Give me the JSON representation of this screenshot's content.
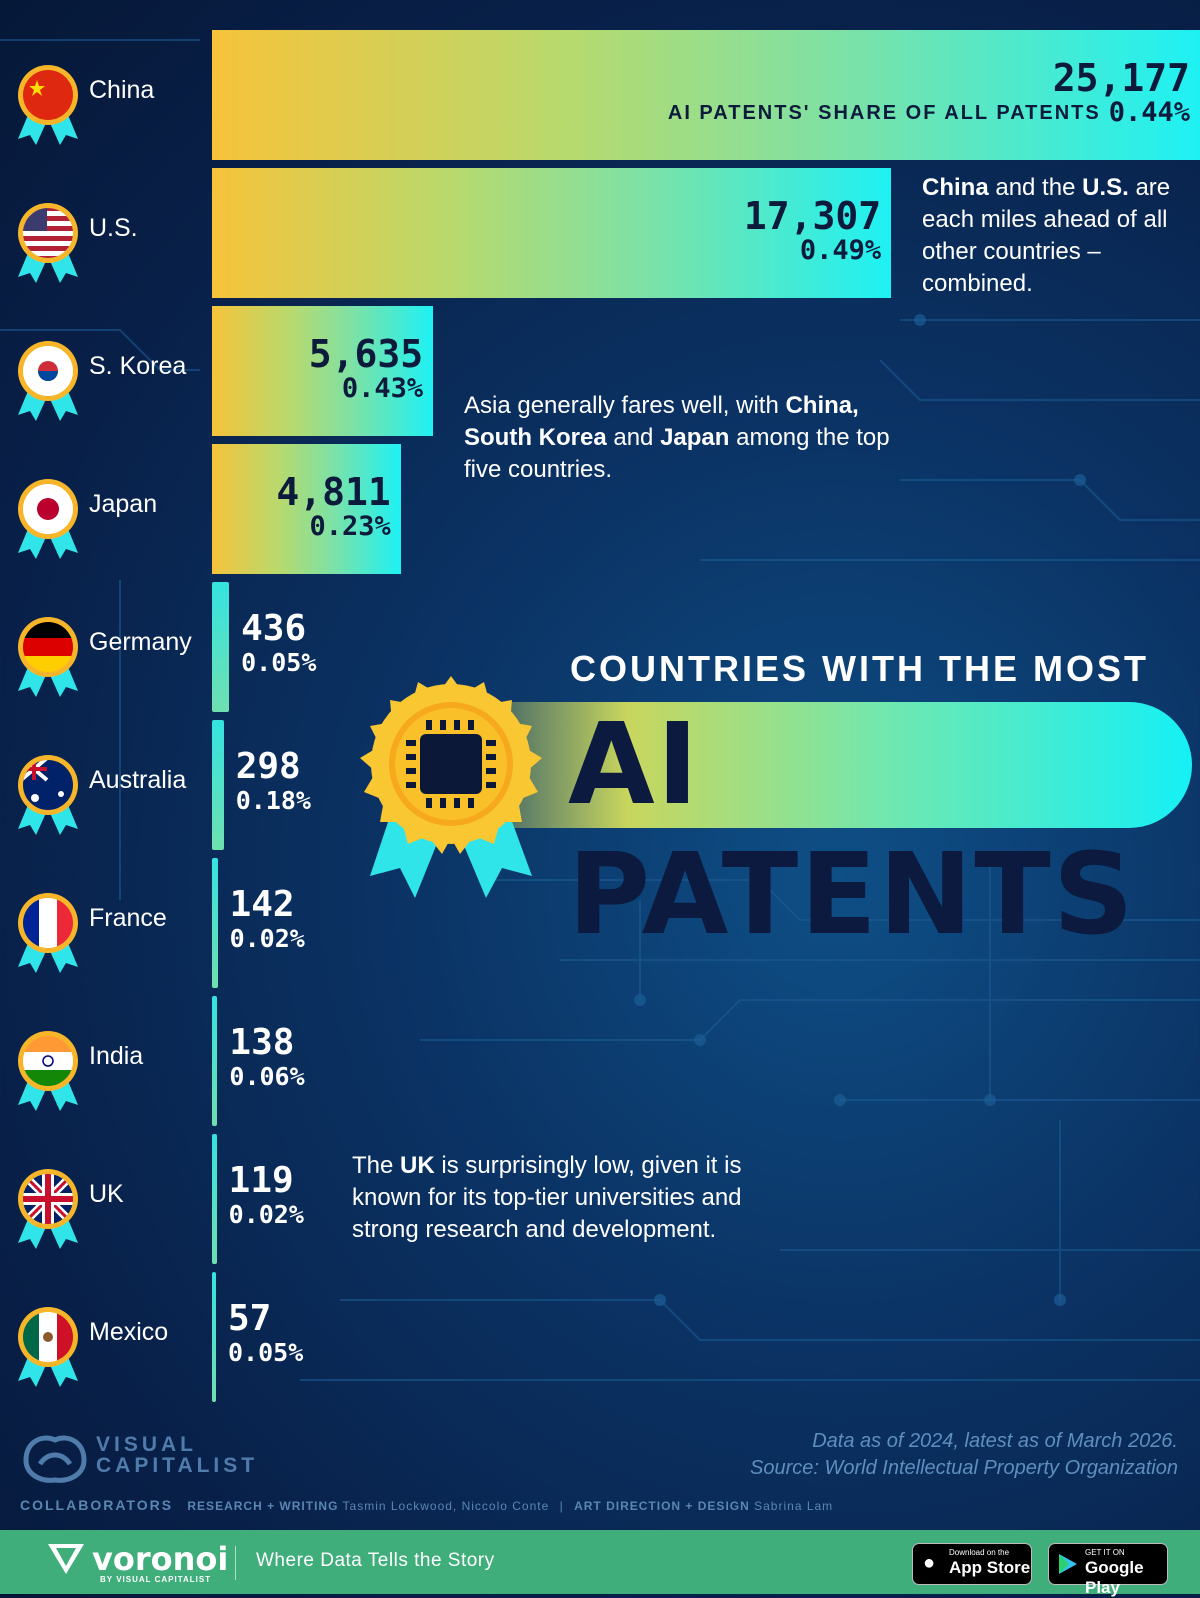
{
  "chart_data": {
    "type": "bar",
    "title": "COUNTRIES WITH THE MOST AI PATENTS",
    "title_top": "COUNTRIES WITH THE MOST",
    "title_main": "AI PATENTS",
    "orientation": "horizontal",
    "share_label": "AI PATENTS' SHARE OF ALL PATENTS",
    "categories": [
      "China",
      "U.S.",
      "S. Korea",
      "Japan",
      "Germany",
      "Australia",
      "France",
      "India",
      "UK",
      "Mexico"
    ],
    "values": [
      25177,
      17307,
      5635,
      4811,
      436,
      298,
      142,
      138,
      119,
      57
    ],
    "value_labels": [
      "25,177",
      "17,307",
      "5,635",
      "4,811",
      "436",
      "298",
      "142",
      "138",
      "119",
      "57"
    ],
    "share_labels": [
      "0.44%",
      "0.49%",
      "0.43%",
      "0.23%",
      "0.05%",
      "0.18%",
      "0.02%",
      "0.06%",
      "0.02%",
      "0.05%"
    ],
    "xlim": [
      0,
      25177
    ]
  },
  "notes": {
    "us_note": {
      "b1": "China",
      "t1": " and the ",
      "b2": "U.S.",
      "t2": " are each miles ahead of all other countries – combined."
    },
    "asia_note": {
      "t1": "Asia generally fares well, with ",
      "b1": "China,",
      "t2": " ",
      "b2": "South Korea",
      "t3": " and ",
      "b3": "Japan",
      "t4": " among the top five countries."
    },
    "uk_note": {
      "t1": "The ",
      "b1": "UK",
      "t2": " is surprisingly low, given it is known for its top-tier universities and strong research and development."
    }
  },
  "footer": {
    "data_note": "Data as of 2024, latest as of March 2026.",
    "source": "Source: World Intellectual Property Organization",
    "brand_line1": "VISUAL",
    "brand_line2": "CAPITALIST",
    "collaborators_label": "COLLABORATORS",
    "research_label": "RESEARCH + WRITING",
    "research_names": "Tasmin Lockwood, Niccolo Conte",
    "separator": "|",
    "art_label": "ART DIRECTION + DESIGN",
    "art_names": "Sabrina Lam"
  },
  "bottom_bar": {
    "brand": "voronoi",
    "brand_sub": "BY VISUAL CAPITALIST",
    "tagline": "Where Data Tells the Story",
    "app_store_small": "Download on the",
    "app_store": "App Store",
    "google_small": "GET IT ON",
    "google": "Google Play"
  },
  "colors": {
    "bar_start": "#f6c33a",
    "bar_end": "#1ef1f4",
    "background": "#0b3466",
    "footer_green": "#3fae7b"
  },
  "icons": {
    "medal": "flag-medal-icon",
    "badge": "ai-chip-badge-icon"
  }
}
